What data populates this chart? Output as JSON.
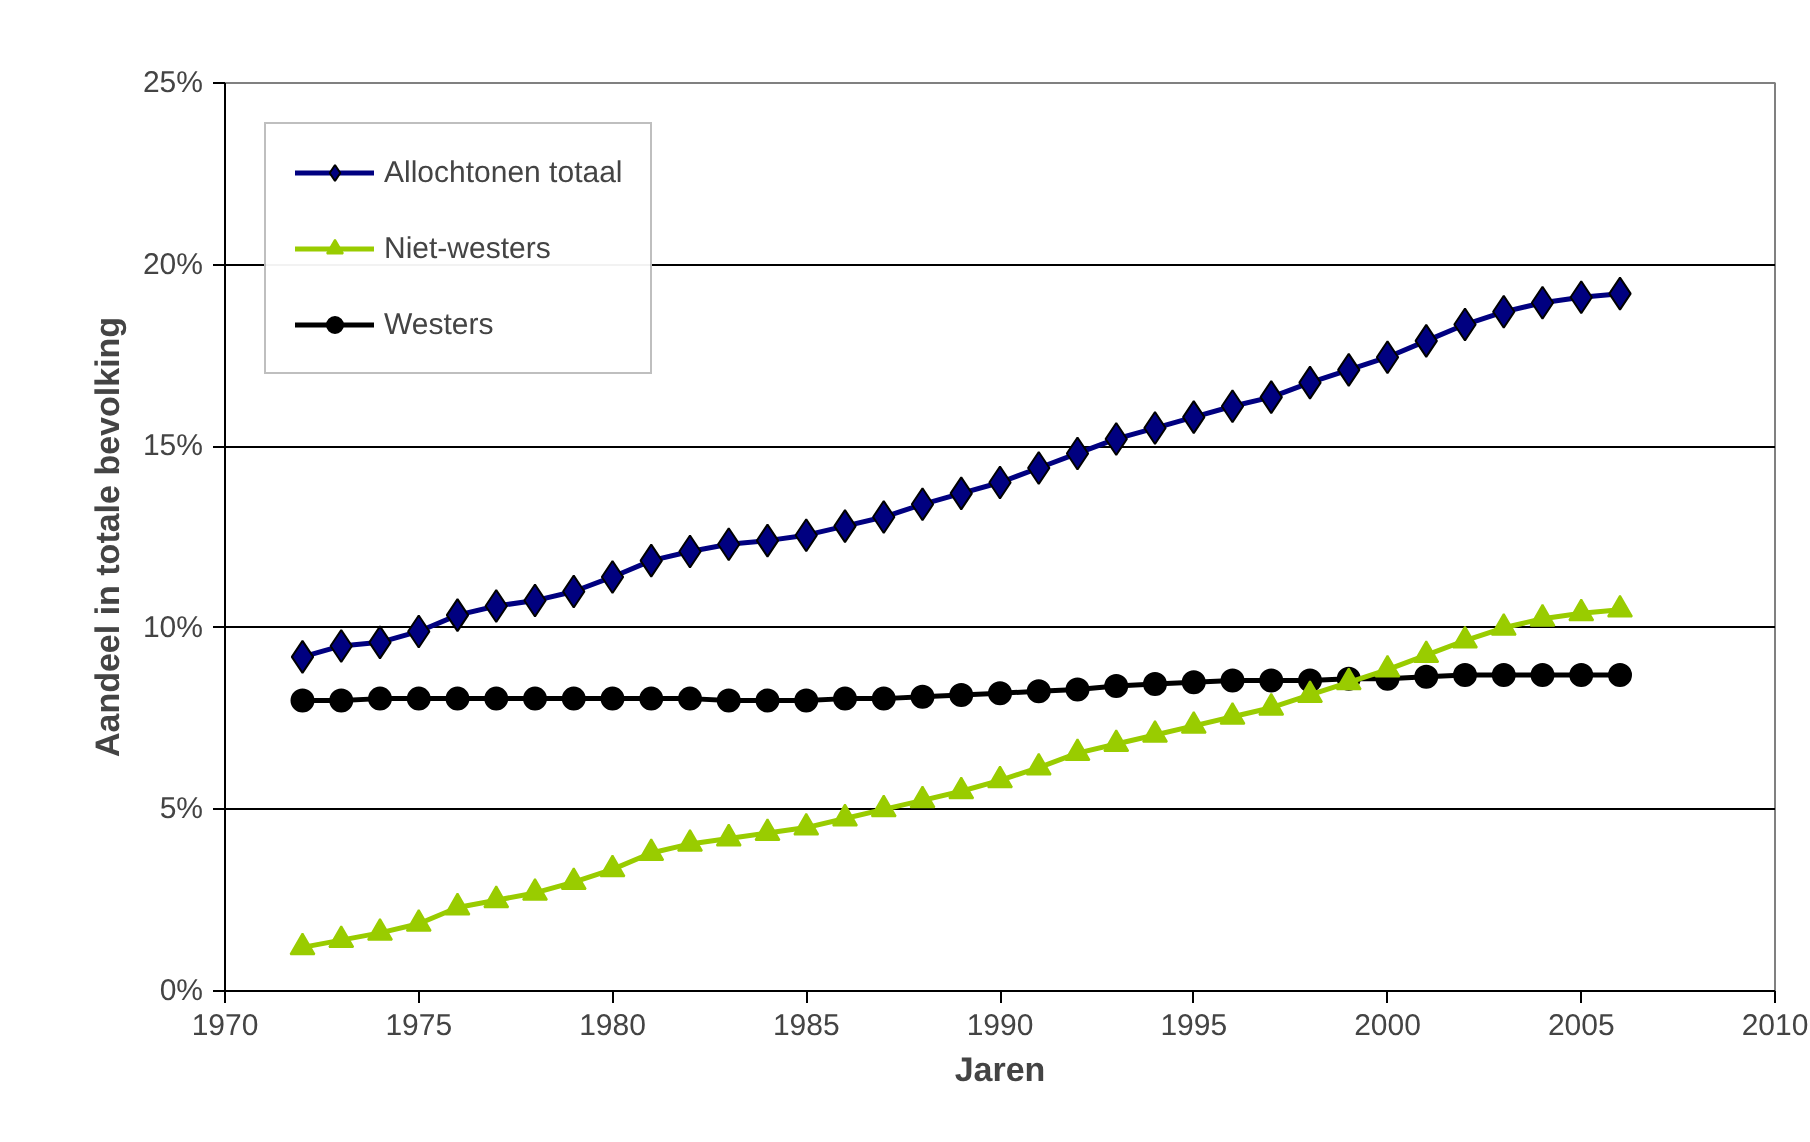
{
  "chart_data": {
    "type": "line",
    "xlabel": "Jaren",
    "ylabel": "Aandeel in totale bevolking",
    "x": [
      1972,
      1973,
      1974,
      1975,
      1976,
      1977,
      1978,
      1979,
      1980,
      1981,
      1982,
      1983,
      1984,
      1985,
      1986,
      1987,
      1988,
      1989,
      1990,
      1991,
      1992,
      1993,
      1994,
      1995,
      1996,
      1997,
      1998,
      1999,
      2000,
      2001,
      2002,
      2003,
      2004,
      2005,
      2006
    ],
    "series": [
      {
        "name": "Allochtonen totaal",
        "color": "#000080",
        "marker": "diamond",
        "values": [
          9.2,
          9.5,
          9.6,
          9.9,
          10.35,
          10.6,
          10.75,
          11.0,
          11.4,
          11.85,
          12.1,
          12.3,
          12.4,
          12.55,
          12.8,
          13.05,
          13.4,
          13.7,
          14.0,
          14.4,
          14.8,
          15.2,
          15.5,
          15.8,
          16.1,
          16.35,
          16.75,
          17.1,
          17.45,
          17.9,
          18.35,
          18.7,
          18.95,
          19.1,
          19.2
        ]
      },
      {
        "name": "Niet-westers",
        "color": "#99cc00",
        "marker": "triangle",
        "values": [
          1.2,
          1.4,
          1.6,
          1.85,
          2.3,
          2.5,
          2.7,
          3.0,
          3.35,
          3.8,
          4.05,
          4.2,
          4.35,
          4.5,
          4.75,
          5.0,
          5.25,
          5.5,
          5.8,
          6.15,
          6.55,
          6.8,
          7.05,
          7.3,
          7.55,
          7.8,
          8.15,
          8.5,
          8.85,
          9.25,
          9.65,
          10.0,
          10.25,
          10.4,
          10.5
        ]
      },
      {
        "name": "Westers",
        "color": "#000000",
        "marker": "circle",
        "values": [
          8.0,
          8.0,
          8.05,
          8.05,
          8.05,
          8.05,
          8.05,
          8.05,
          8.05,
          8.05,
          8.05,
          8.0,
          8.0,
          8.0,
          8.05,
          8.05,
          8.1,
          8.15,
          8.2,
          8.25,
          8.3,
          8.4,
          8.45,
          8.5,
          8.55,
          8.55,
          8.55,
          8.6,
          8.6,
          8.65,
          8.7,
          8.7,
          8.7,
          8.7,
          8.7
        ]
      }
    ],
    "xlim": [
      1970,
      2010
    ],
    "xticks": [
      1970,
      1975,
      1980,
      1985,
      1990,
      1995,
      2000,
      2005,
      2010
    ],
    "ylim": [
      0,
      25
    ],
    "yticks": [
      {
        "value": 0,
        "label": "0%"
      },
      {
        "value": 5,
        "label": "5%"
      },
      {
        "value": 10,
        "label": "10%"
      },
      {
        "value": 15,
        "label": "15%"
      },
      {
        "value": 20,
        "label": "20%"
      },
      {
        "value": 25,
        "label": "25%"
      }
    ],
    "grid": "y",
    "legend": "top left",
    "line_style": "solid"
  }
}
